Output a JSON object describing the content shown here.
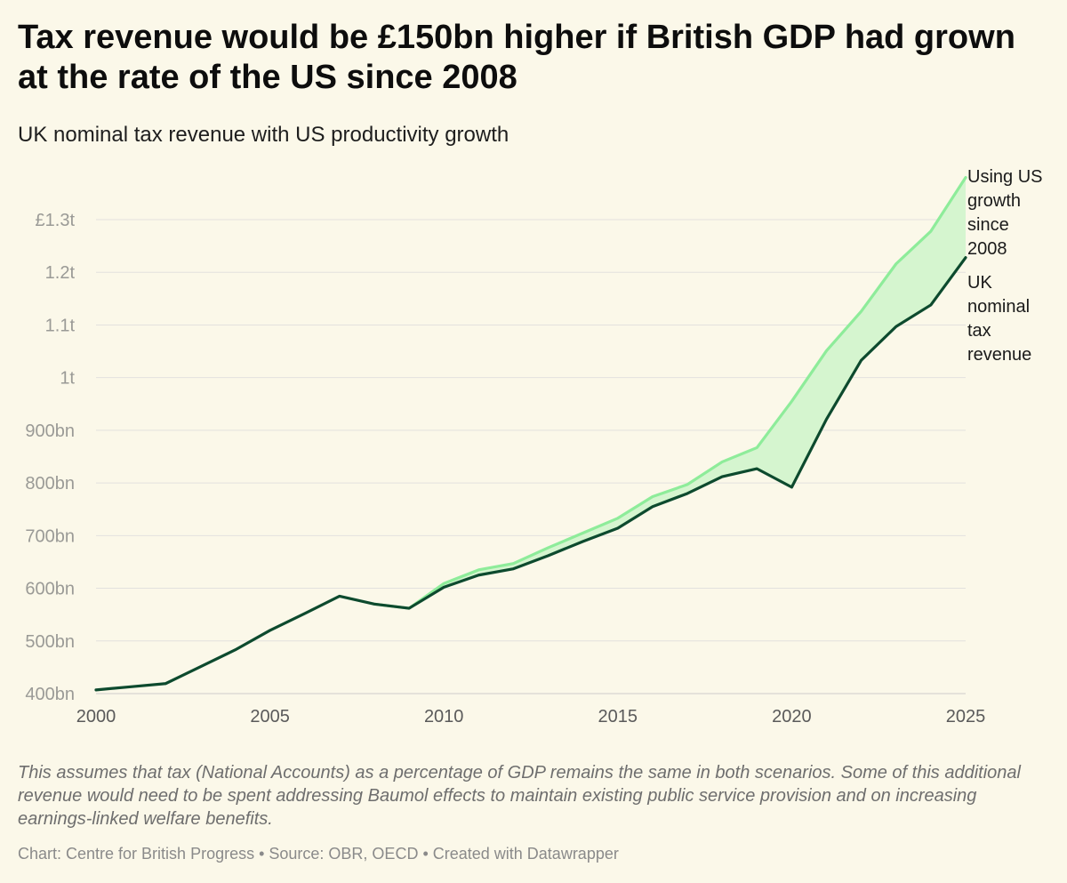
{
  "header": {
    "title": "Tax revenue would be £150bn higher if British GDP had grown at the rate of the US since 2008",
    "subtitle": "UK nominal tax revenue with US productivity growth"
  },
  "footer": {
    "note": "This assumes that tax (National Accounts) as a percentage of GDP remains the same in both scenarios. Some of this additional revenue would need to be spent addressing Baumol effects to maintain existing public service provision and on increasing earnings-linked welfare benefits.",
    "source": "Chart: Centre for British Progress • Source: OBR, OECD • Created with Datawrapper"
  },
  "colors": {
    "uk_line": "#0d4a2e",
    "us_line": "#8eec9a",
    "fill": "#d5f5cf",
    "grid": "#e3e1de"
  },
  "chart_data": {
    "type": "line",
    "title": "Tax revenue would be £150bn higher if British GDP had grown at the rate of the US since 2008",
    "subtitle": "UK nominal tax revenue with US productivity growth",
    "xlabel": "",
    "ylabel": "",
    "xlim": [
      2000,
      2025
    ],
    "ylim": [
      400,
      1300
    ],
    "yticks": [
      {
        "value": 400,
        "label": "400bn"
      },
      {
        "value": 500,
        "label": "500bn"
      },
      {
        "value": 600,
        "label": "600bn"
      },
      {
        "value": 700,
        "label": "700bn"
      },
      {
        "value": 800,
        "label": "800bn"
      },
      {
        "value": 900,
        "label": "900bn"
      },
      {
        "value": 1000,
        "label": "1t"
      },
      {
        "value": 1100,
        "label": "1.1t"
      },
      {
        "value": 1200,
        "label": "1.2t"
      },
      {
        "value": 1300,
        "label": "£1.3t"
      }
    ],
    "xticks": [
      2000,
      2005,
      2010,
      2015,
      2020,
      2025
    ],
    "grid": true,
    "shaded_area_between_series": true,
    "series": [
      {
        "name": "UK nominal tax revenue",
        "label_lines": [
          "UK",
          "nominal",
          "tax",
          "revenue"
        ],
        "x": [
          2000,
          2001,
          2002,
          2003,
          2004,
          2005,
          2006,
          2007,
          2008,
          2009,
          2010,
          2011,
          2012,
          2013,
          2014,
          2015,
          2016,
          2017,
          2018,
          2019,
          2020,
          2021,
          2022,
          2023,
          2024,
          2025
        ],
        "values": [
          407,
          413,
          419,
          451,
          483,
          520,
          552,
          585,
          570,
          562,
          602,
          625,
          637,
          662,
          689,
          714,
          755,
          780,
          812,
          827,
          792,
          921,
          1033,
          1097,
          1138,
          1228
        ]
      },
      {
        "name": "Using US growth since 2008",
        "label_lines": [
          "Using US",
          "growth",
          "since",
          "2008"
        ],
        "x": [
          2008,
          2009,
          2010,
          2011,
          2012,
          2013,
          2014,
          2015,
          2016,
          2017,
          2018,
          2019,
          2020,
          2021,
          2022,
          2023,
          2024,
          2025
        ],
        "values": [
          570,
          562,
          609,
          635,
          647,
          677,
          705,
          733,
          774,
          797,
          840,
          867,
          955,
          1051,
          1126,
          1216,
          1278,
          1380
        ]
      }
    ]
  }
}
